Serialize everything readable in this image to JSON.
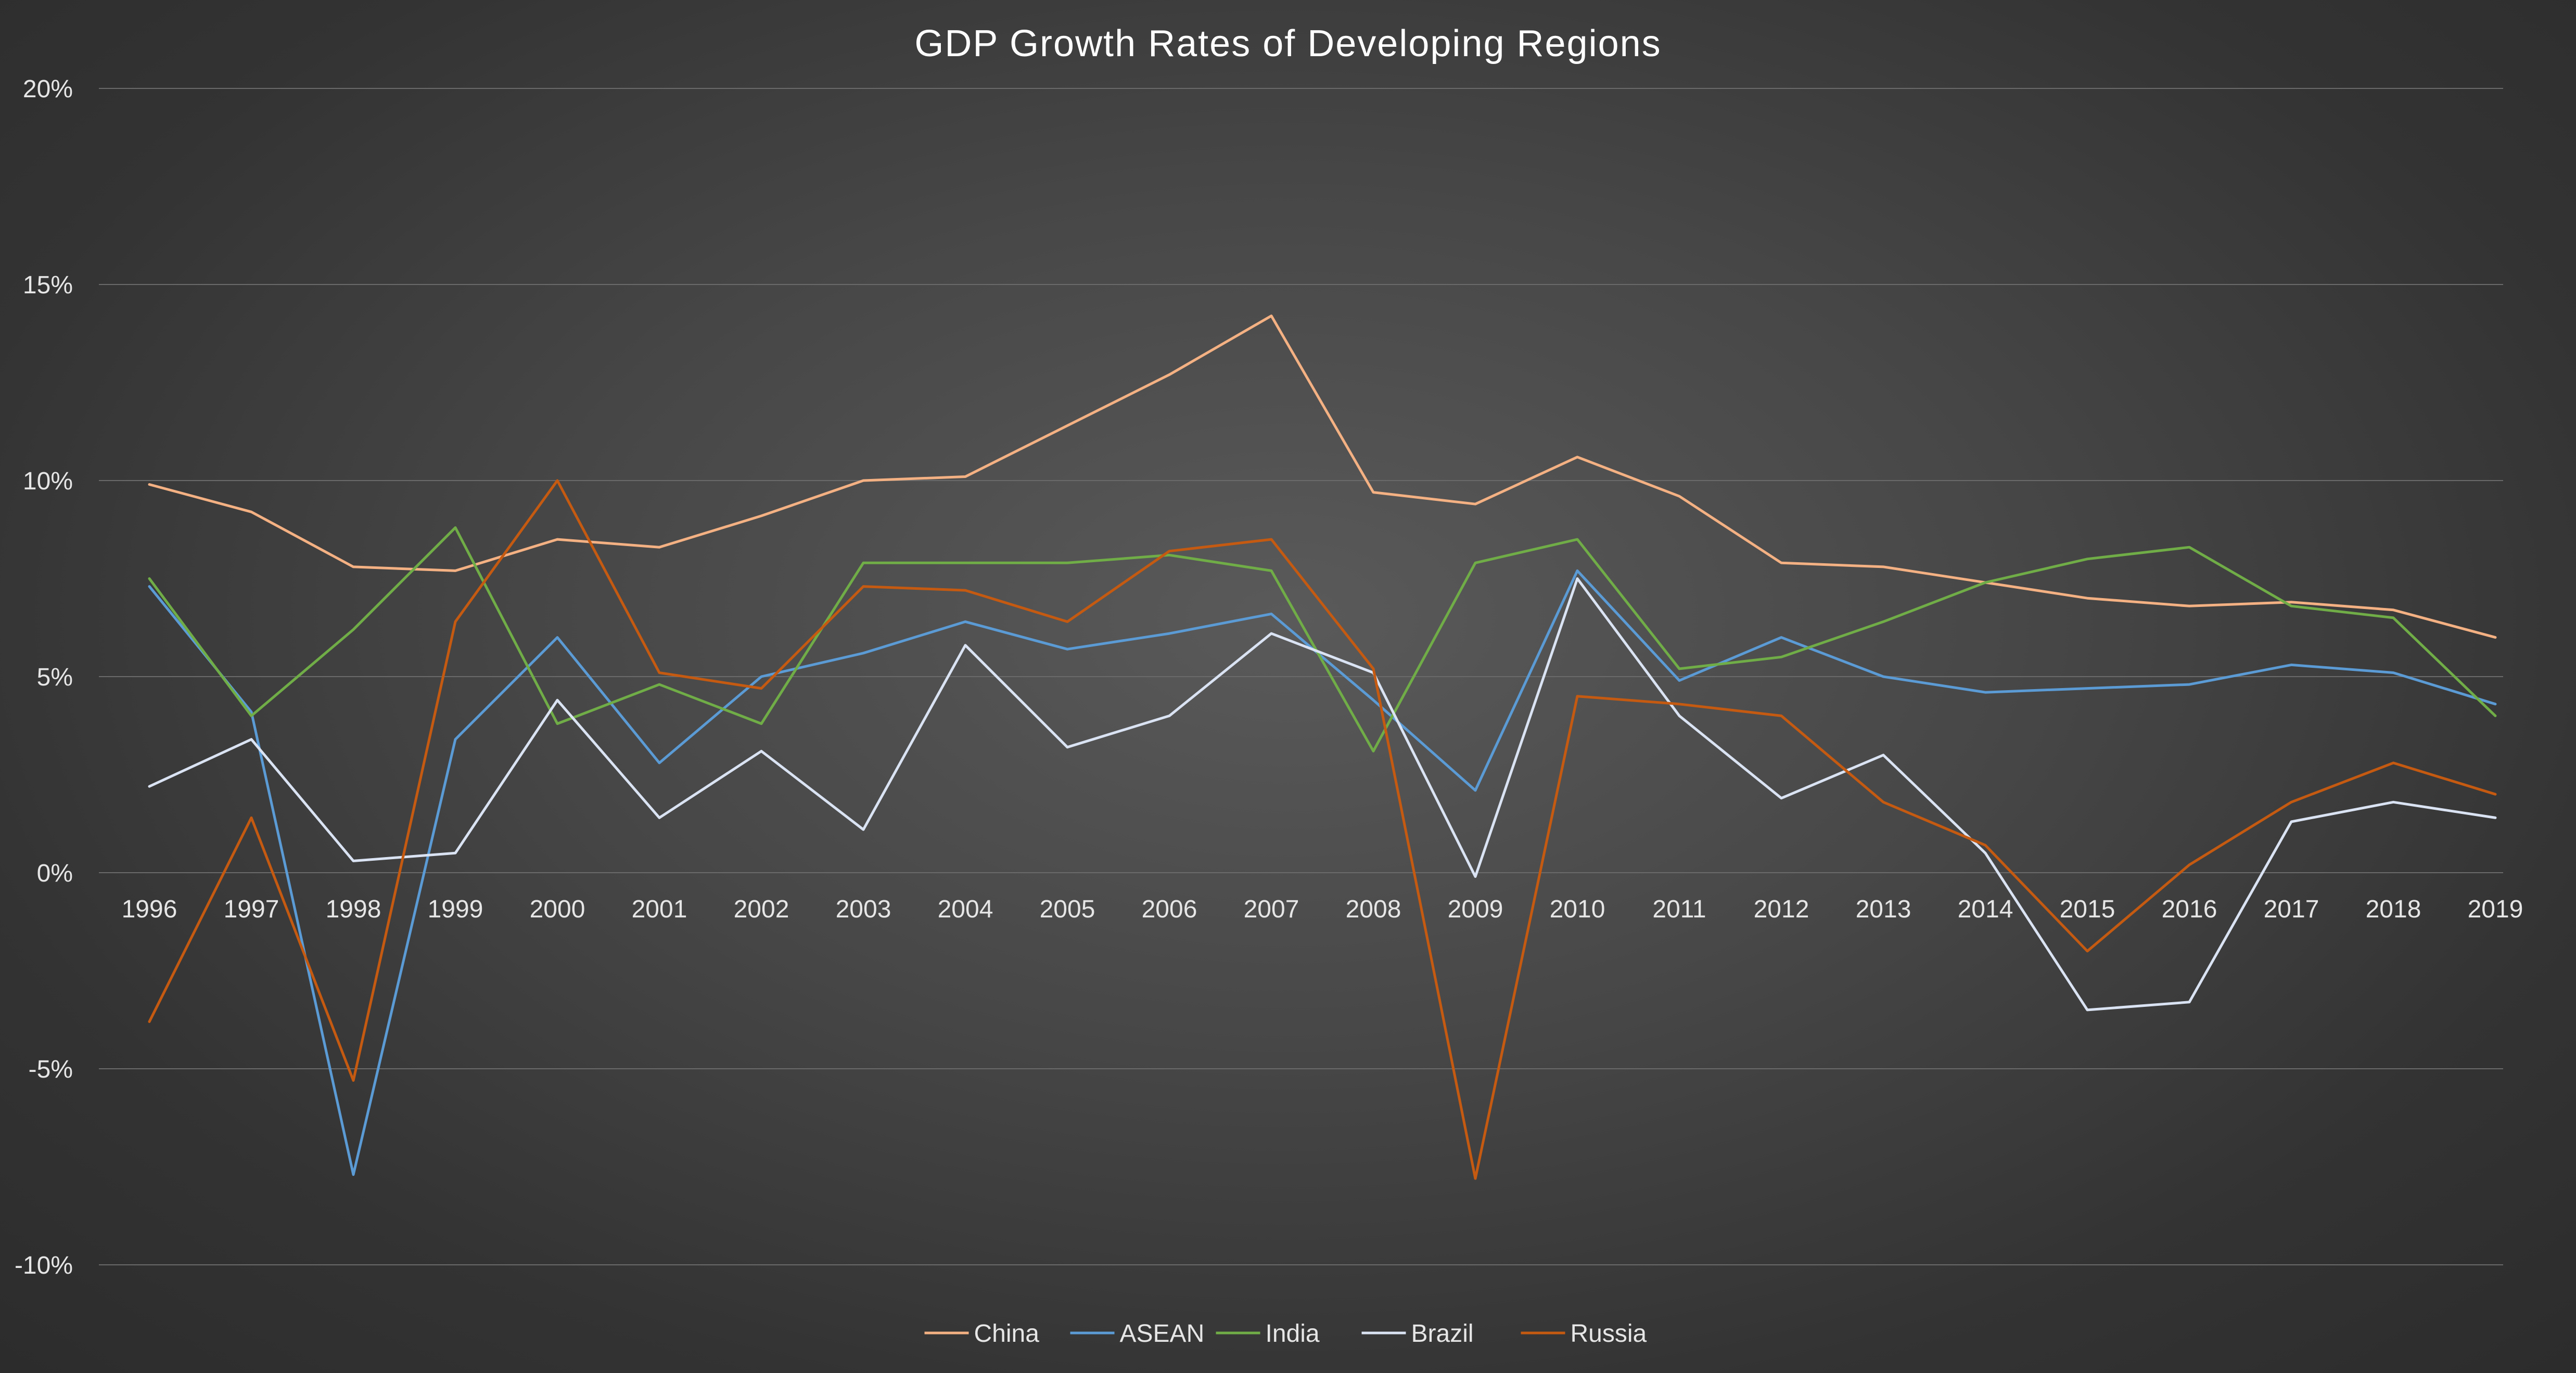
{
  "chart_data": {
    "type": "line",
    "title": "GDP Growth Rates of Developing Regions",
    "xlabel": "",
    "ylabel": "",
    "ylim": [
      -10,
      20
    ],
    "y_ticks": [
      20,
      15,
      10,
      5,
      0,
      -5,
      -10
    ],
    "y_tick_labels": [
      "20%",
      "15%",
      "10%",
      "5%",
      "0%",
      "-5%",
      "-10%"
    ],
    "grid": true,
    "legend_position": "bottom",
    "categories": [
      "1996",
      "1997",
      "1998",
      "1999",
      "2000",
      "2001",
      "2002",
      "2003",
      "2004",
      "2005",
      "2006",
      "2007",
      "2008",
      "2009",
      "2010",
      "2011",
      "2012",
      "2013",
      "2014",
      "2015",
      "2016",
      "2017",
      "2018",
      "2019"
    ],
    "series": [
      {
        "name": "China",
        "color": "#f4b183",
        "values": [
          9.9,
          9.2,
          7.8,
          7.7,
          8.5,
          8.3,
          9.1,
          10.0,
          10.1,
          11.4,
          12.7,
          14.2,
          9.7,
          9.4,
          10.6,
          9.6,
          7.9,
          7.8,
          7.4,
          7.0,
          6.8,
          6.9,
          6.7,
          6.0
        ]
      },
      {
        "name": "ASEAN",
        "color": "#5b9bd5",
        "values": [
          7.3,
          4.1,
          -7.7,
          3.4,
          6.0,
          2.8,
          5.0,
          5.6,
          6.4,
          5.7,
          6.1,
          6.6,
          4.4,
          2.1,
          7.7,
          4.9,
          6.0,
          5.0,
          4.6,
          4.7,
          4.8,
          5.3,
          5.1,
          4.3
        ]
      },
      {
        "name": "India",
        "color": "#70ad47",
        "values": [
          7.5,
          4.0,
          6.2,
          8.8,
          3.8,
          4.8,
          3.8,
          7.9,
          7.9,
          7.9,
          8.1,
          7.7,
          3.1,
          7.9,
          8.5,
          5.2,
          5.5,
          6.4,
          7.4,
          8.0,
          8.3,
          6.8,
          6.5,
          4.0
        ]
      },
      {
        "name": "Brazil",
        "color": "#dae3f3",
        "values": [
          2.2,
          3.4,
          0.3,
          0.5,
          4.4,
          1.4,
          3.1,
          1.1,
          5.8,
          3.2,
          4.0,
          6.1,
          5.1,
          -0.1,
          7.5,
          4.0,
          1.9,
          3.0,
          0.5,
          -3.5,
          -3.3,
          1.3,
          1.8,
          1.4
        ]
      },
      {
        "name": "Russia",
        "color": "#c55a11",
        "values": [
          -3.8,
          1.4,
          -5.3,
          6.4,
          10.0,
          5.1,
          4.7,
          7.3,
          7.2,
          6.4,
          8.2,
          8.5,
          5.2,
          -7.8,
          4.5,
          4.3,
          4.0,
          1.8,
          0.7,
          -2.0,
          0.2,
          1.8,
          2.8,
          2.0
        ]
      }
    ]
  }
}
